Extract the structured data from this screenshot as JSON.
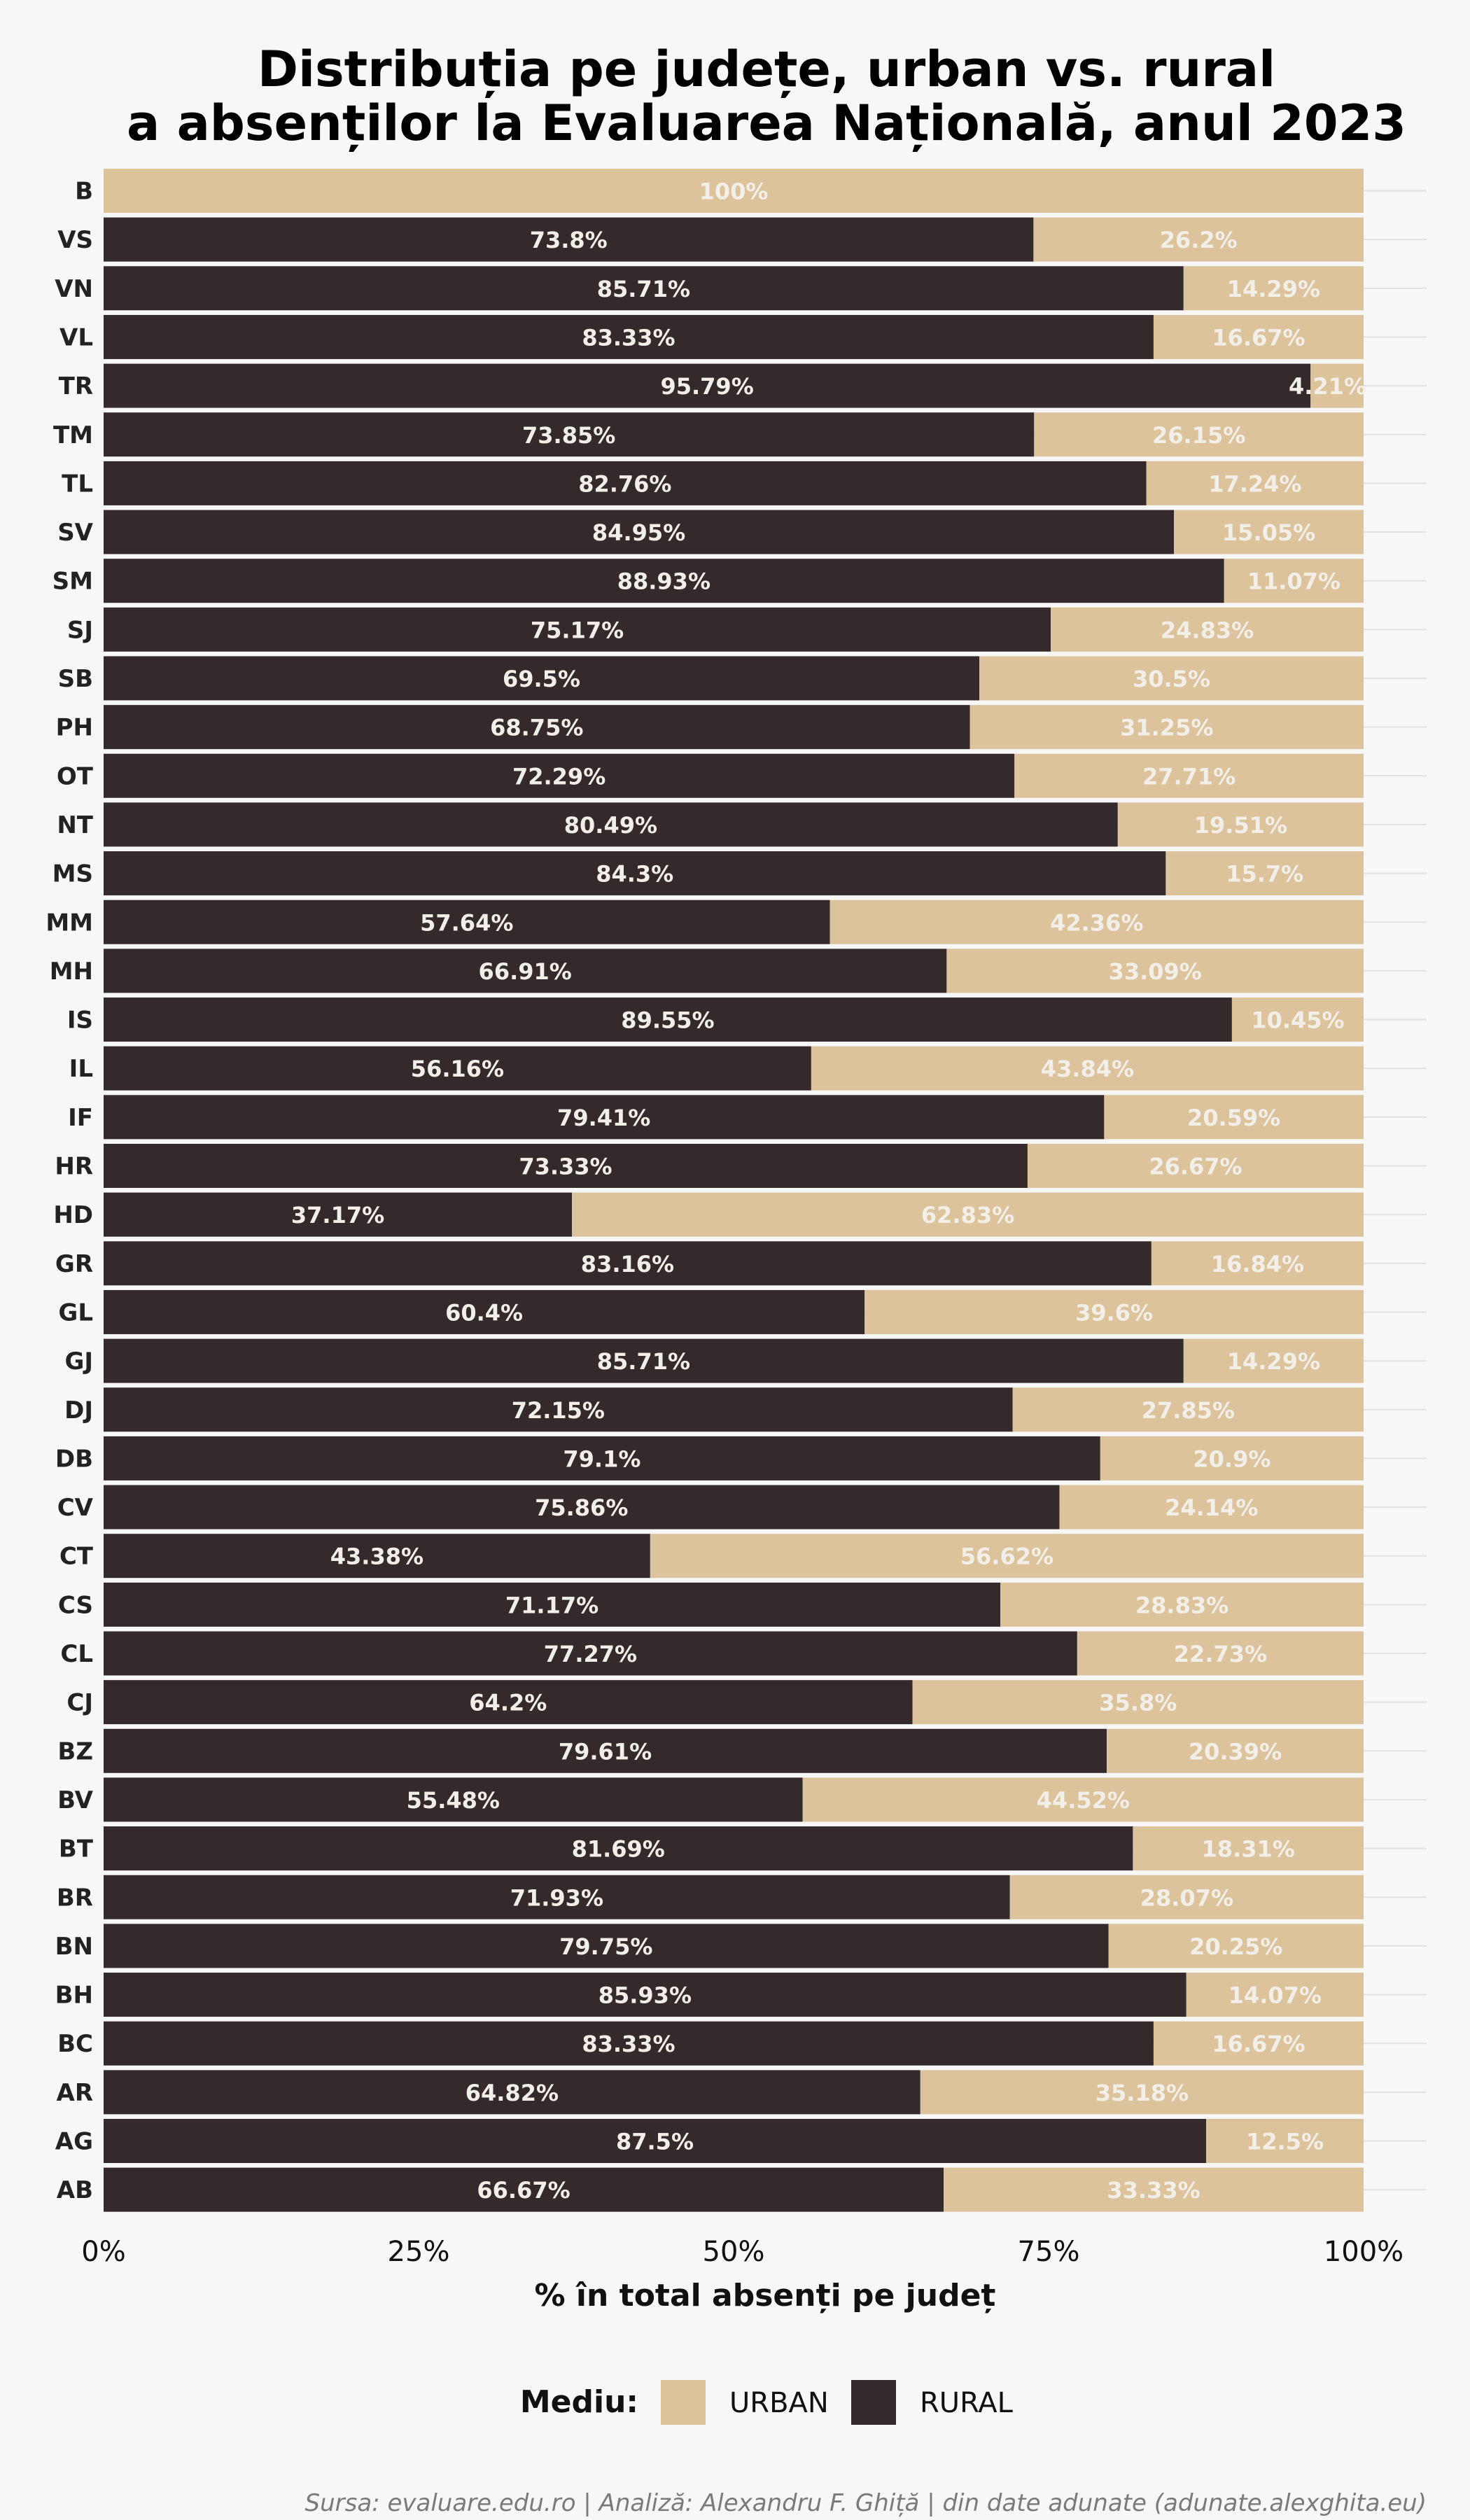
{
  "chart_data": {
    "type": "bar",
    "orientation": "horizontal",
    "stacked": true,
    "title_lines": [
      "Distribuția pe județe, urban vs. rural",
      "a absenților la Evaluarea Națională, anul 2023"
    ],
    "xlabel": "% în total absenți pe județ",
    "ylabel": "",
    "xlim": [
      0,
      100
    ],
    "x_ticks": [
      0,
      25,
      50,
      75,
      100
    ],
    "x_tick_labels": [
      "0%",
      "25%",
      "50%",
      "75%",
      "100%"
    ],
    "grid": true,
    "categories": [
      "B",
      "VS",
      "VN",
      "VL",
      "TR",
      "TM",
      "TL",
      "SV",
      "SM",
      "SJ",
      "SB",
      "PH",
      "OT",
      "NT",
      "MS",
      "MM",
      "MH",
      "IS",
      "IL",
      "IF",
      "HR",
      "HD",
      "GR",
      "GL",
      "GJ",
      "DJ",
      "DB",
      "CV",
      "CT",
      "CS",
      "CL",
      "CJ",
      "BZ",
      "BV",
      "BT",
      "BR",
      "BN",
      "BH",
      "BC",
      "AR",
      "AG",
      "AB"
    ],
    "series": [
      {
        "name": "RURAL",
        "color": "#352a2b",
        "values": [
          0,
          73.8,
          85.71,
          83.33,
          95.79,
          73.85,
          82.76,
          84.95,
          88.93,
          75.17,
          69.5,
          68.75,
          72.29,
          80.49,
          84.3,
          57.64,
          66.91,
          89.55,
          56.16,
          79.41,
          73.33,
          37.17,
          83.16,
          60.4,
          85.71,
          72.15,
          79.1,
          75.86,
          43.38,
          71.17,
          77.27,
          64.2,
          79.61,
          55.48,
          81.69,
          71.93,
          79.75,
          85.93,
          83.33,
          64.82,
          87.5,
          66.67
        ],
        "labels": [
          "",
          "73.8%",
          "85.71%",
          "83.33%",
          "95.79%",
          "73.85%",
          "82.76%",
          "84.95%",
          "88.93%",
          "75.17%",
          "69.5%",
          "68.75%",
          "72.29%",
          "80.49%",
          "84.3%",
          "57.64%",
          "66.91%",
          "89.55%",
          "56.16%",
          "79.41%",
          "73.33%",
          "37.17%",
          "83.16%",
          "60.4%",
          "85.71%",
          "72.15%",
          "79.1%",
          "75.86%",
          "43.38%",
          "71.17%",
          "77.27%",
          "64.2%",
          "79.61%",
          "55.48%",
          "81.69%",
          "71.93%",
          "79.75%",
          "85.93%",
          "83.33%",
          "64.82%",
          "87.5%",
          "66.67%"
        ]
      },
      {
        "name": "URBAN",
        "color": "#dcc39c",
        "values": [
          100,
          26.2,
          14.29,
          16.67,
          4.21,
          26.15,
          17.24,
          15.05,
          11.07,
          24.83,
          30.5,
          31.25,
          27.71,
          19.51,
          15.7,
          42.36,
          33.09,
          10.45,
          43.84,
          20.59,
          26.67,
          62.83,
          16.84,
          39.6,
          14.29,
          27.85,
          20.9,
          24.14,
          56.62,
          28.83,
          22.73,
          35.8,
          20.39,
          44.52,
          18.31,
          28.07,
          20.25,
          14.07,
          16.67,
          35.18,
          12.5,
          33.33
        ],
        "labels": [
          "100%",
          "26.2%",
          "14.29%",
          "16.67%",
          "4.21%",
          "26.15%",
          "17.24%",
          "15.05%",
          "11.07%",
          "24.83%",
          "30.5%",
          "31.25%",
          "27.71%",
          "19.51%",
          "15.7%",
          "42.36%",
          "33.09%",
          "10.45%",
          "43.84%",
          "20.59%",
          "26.67%",
          "62.83%",
          "16.84%",
          "39.6%",
          "14.29%",
          "27.85%",
          "20.9%",
          "24.14%",
          "56.62%",
          "28.83%",
          "22.73%",
          "35.8%",
          "20.39%",
          "44.52%",
          "18.31%",
          "28.07%",
          "20.25%",
          "14.07%",
          "16.67%",
          "35.18%",
          "12.5%",
          "33.33%"
        ]
      }
    ],
    "legend": {
      "title": "Mediu:",
      "position": "bottom",
      "items": [
        {
          "label": "URBAN",
          "color": "#dcc39c"
        },
        {
          "label": "RURAL",
          "color": "#352a2b"
        }
      ]
    },
    "caption": "Sursa: evaluare.edu.ro | Analiză: Alexandru F. Ghiță | din date adunate (adunate.alexghita.eu)"
  },
  "colors": {
    "background": "#f7f7f7",
    "grid": "#e2e2e2",
    "bar_label": "#f2efe9"
  }
}
